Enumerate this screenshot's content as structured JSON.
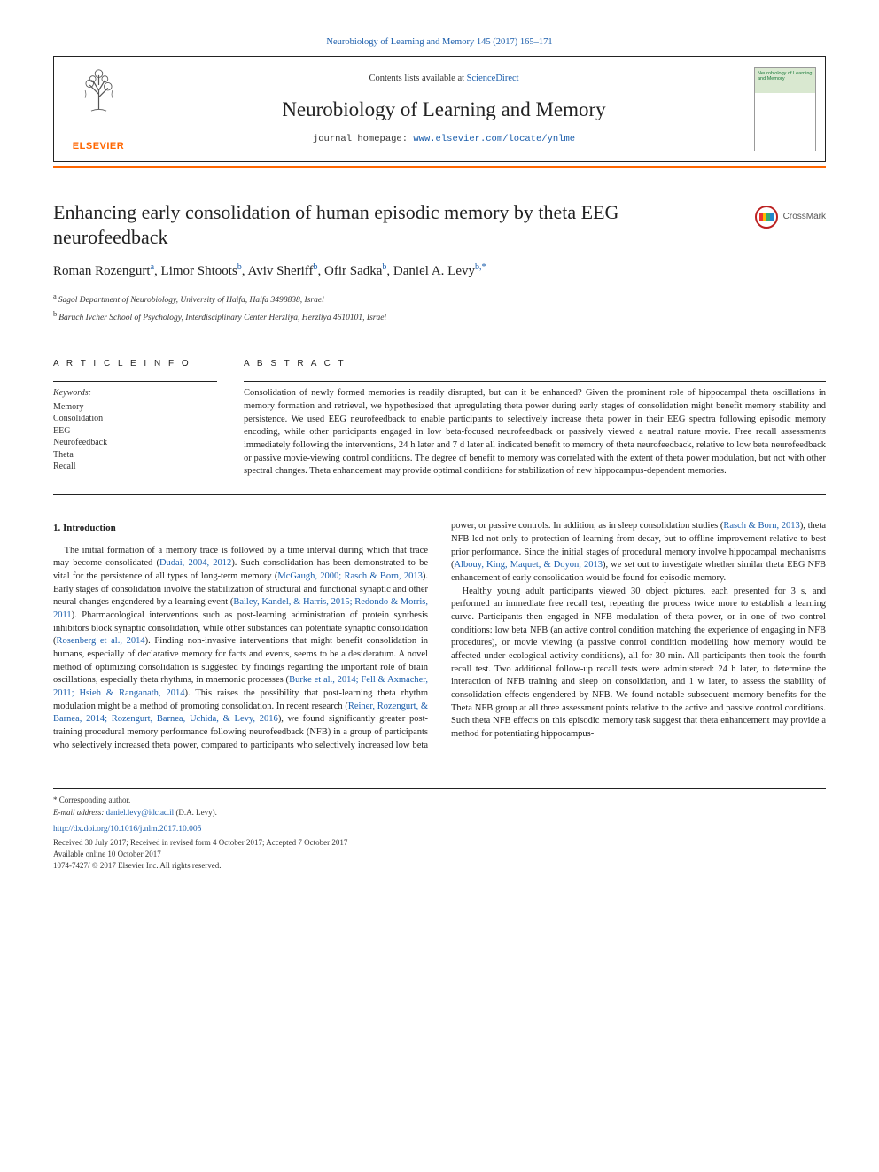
{
  "citation": "Neurobiology of Learning and Memory 145 (2017) 165–171",
  "header": {
    "contents_prefix": "Contents lists available at ",
    "contents_link": "ScienceDirect",
    "journal": "Neurobiology of Learning and Memory",
    "homepage_prefix": "journal homepage: ",
    "homepage_url": "www.elsevier.com/locate/ynlme",
    "publisher_wordmark": "ELSEVIER",
    "cover_mini_title": "Neurobiology of Learning and Memory"
  },
  "colors": {
    "accent_orange": "#ff6600",
    "link_blue": "#1a5dab",
    "text": "#222222",
    "rule": "#222222",
    "cover_green": "#d9e8d0"
  },
  "article": {
    "title": "Enhancing early consolidation of human episodic memory by theta EEG neurofeedback",
    "crossmark_label": "CrossMark",
    "authors_html_parts": [
      {
        "name": "Roman Rozengurt",
        "aff": "a"
      },
      {
        "name": "Limor Shtoots",
        "aff": "b"
      },
      {
        "name": "Aviv Sheriff",
        "aff": "b"
      },
      {
        "name": "Ofir Sadka",
        "aff": "b"
      },
      {
        "name": "Daniel A. Levy",
        "aff": "b,*"
      }
    ],
    "affiliations": [
      {
        "label": "a",
        "text": "Sagol Department of Neurobiology, University of Haifa, Haifa 3498838, Israel"
      },
      {
        "label": "b",
        "text": "Baruch Ivcher School of Psychology, Interdisciplinary Center Herzliya, Herzliya 4610101, Israel"
      }
    ]
  },
  "info": {
    "heading": "A R T I C L E  I N F O",
    "kw_label": "Keywords:",
    "keywords": [
      "Memory",
      "Consolidation",
      "EEG",
      "Neurofeedback",
      "Theta",
      "Recall"
    ]
  },
  "abstract": {
    "heading": "A B S T R A C T",
    "text": "Consolidation of newly formed memories is readily disrupted, but can it be enhanced? Given the prominent role of hippocampal theta oscillations in memory formation and retrieval, we hypothesized that upregulating theta power during early stages of consolidation might benefit memory stability and persistence. We used EEG neurofeedback to enable participants to selectively increase theta power in their EEG spectra following episodic memory encoding, while other participants engaged in low beta-focused neurofeedback or passively viewed a neutral nature movie. Free recall assessments immediately following the interventions, 24 h later and 7 d later all indicated benefit to memory of theta neurofeedback, relative to low beta neurofeedback or passive movie-viewing control conditions. The degree of benefit to memory was correlated with the extent of theta power modulation, but not with other spectral changes. Theta enhancement may provide optimal conditions for stabilization of new hippocampus-dependent memories."
  },
  "intro": {
    "heading": "1. Introduction",
    "p1_a": "The initial formation of a memory trace is followed by a time interval during which that trace may become consolidated (",
    "p1_cite1": "Dudai, 2004, 2012",
    "p1_b": "). Such consolidation has been demonstrated to be vital for the persistence of all types of long-term memory (",
    "p1_cite2": "McGaugh, 2000; Rasch & Born, 2013",
    "p1_c": "). Early stages of consolidation involve the stabilization of structural and functional synaptic and other neural changes engendered by a learning event (",
    "p1_cite3": "Bailey, Kandel, & Harris, 2015; Redondo & Morris, 2011",
    "p1_d": "). Pharmacological interventions such as post-learning administration of protein synthesis inhibitors block synaptic consolidation, while other substances can potentiate synaptic consolidation (",
    "p1_cite4": "Rosenberg et al., 2014",
    "p1_e": "). Finding non-invasive interventions that might benefit consolidation in humans, especially of declarative memory for facts and events, seems to be a desideratum. A novel method of optimizing consolidation is suggested by findings regarding the important role of brain oscillations, especially theta rhythms, in mnemonic processes (",
    "p1_cite5": "Burke et al., 2014; Fell & Axmacher, 2011; Hsieh & Ranganath, 2014",
    "p1_f": "). This raises the possibility that post-learning theta rhythm modulation might be a method of promoting consolidation. In recent research (",
    "p1_cite6": "Reiner, Rozengurt, & Barnea, 2014; Rozengurt, Barnea, Uchida, & Levy, 2016",
    "p1_g": "), we found significantly greater post-training procedural memory performance following neurofeedback (NFB) in a group of participants who selectively increased theta power, ",
    "p2_a": "compared to participants who selectively increased low beta power, or passive controls. In addition, as in sleep consolidation studies (",
    "p2_cite1": "Rasch & Born, 2013",
    "p2_b": "), theta NFB led not only to protection of learning from decay, but to offline improvement relative to best prior performance. Since the initial stages of procedural memory involve hippocampal mechanisms (",
    "p2_cite2": "Albouy, King, Maquet, & Doyon, 2013",
    "p2_c": "), we set out to investigate whether similar theta EEG NFB enhancement of early consolidation would be found for episodic memory.",
    "p3": "Healthy young adult participants viewed 30 object pictures, each presented for 3 s, and performed an immediate free recall test, repeating the process twice more to establish a learning curve. Participants then engaged in NFB modulation of theta power, or in one of two control conditions: low beta NFB (an active control condition matching the experience of engaging in NFB procedures), or movie viewing (a passive control condition modelling how memory would be affected under ecological activity conditions), all for 30 min. All participants then took the fourth recall test. Two additional follow-up recall tests were administered: 24 h later, to determine the interaction of NFB training and sleep on consolidation, and 1 w later, to assess the stability of consolidation effects engendered by NFB. We found notable subsequent memory benefits for the Theta NFB group at all three assessment points relative to the active and passive control conditions. Such theta NFB effects on this episodic memory task suggest that theta enhancement may provide a method for potentiating hippocampus-"
  },
  "footer": {
    "corresponding_label": "* Corresponding author.",
    "email_label": "E-mail address: ",
    "email": "daniel.levy@idc.ac.il",
    "email_attribution": " (D.A. Levy).",
    "doi": "http://dx.doi.org/10.1016/j.nlm.2017.10.005",
    "history": "Received 30 July 2017; Received in revised form 4 October 2017; Accepted 7 October 2017",
    "online": "Available online 10 October 2017",
    "copyright": "1074-7427/ © 2017 Elsevier Inc. All rights reserved."
  }
}
